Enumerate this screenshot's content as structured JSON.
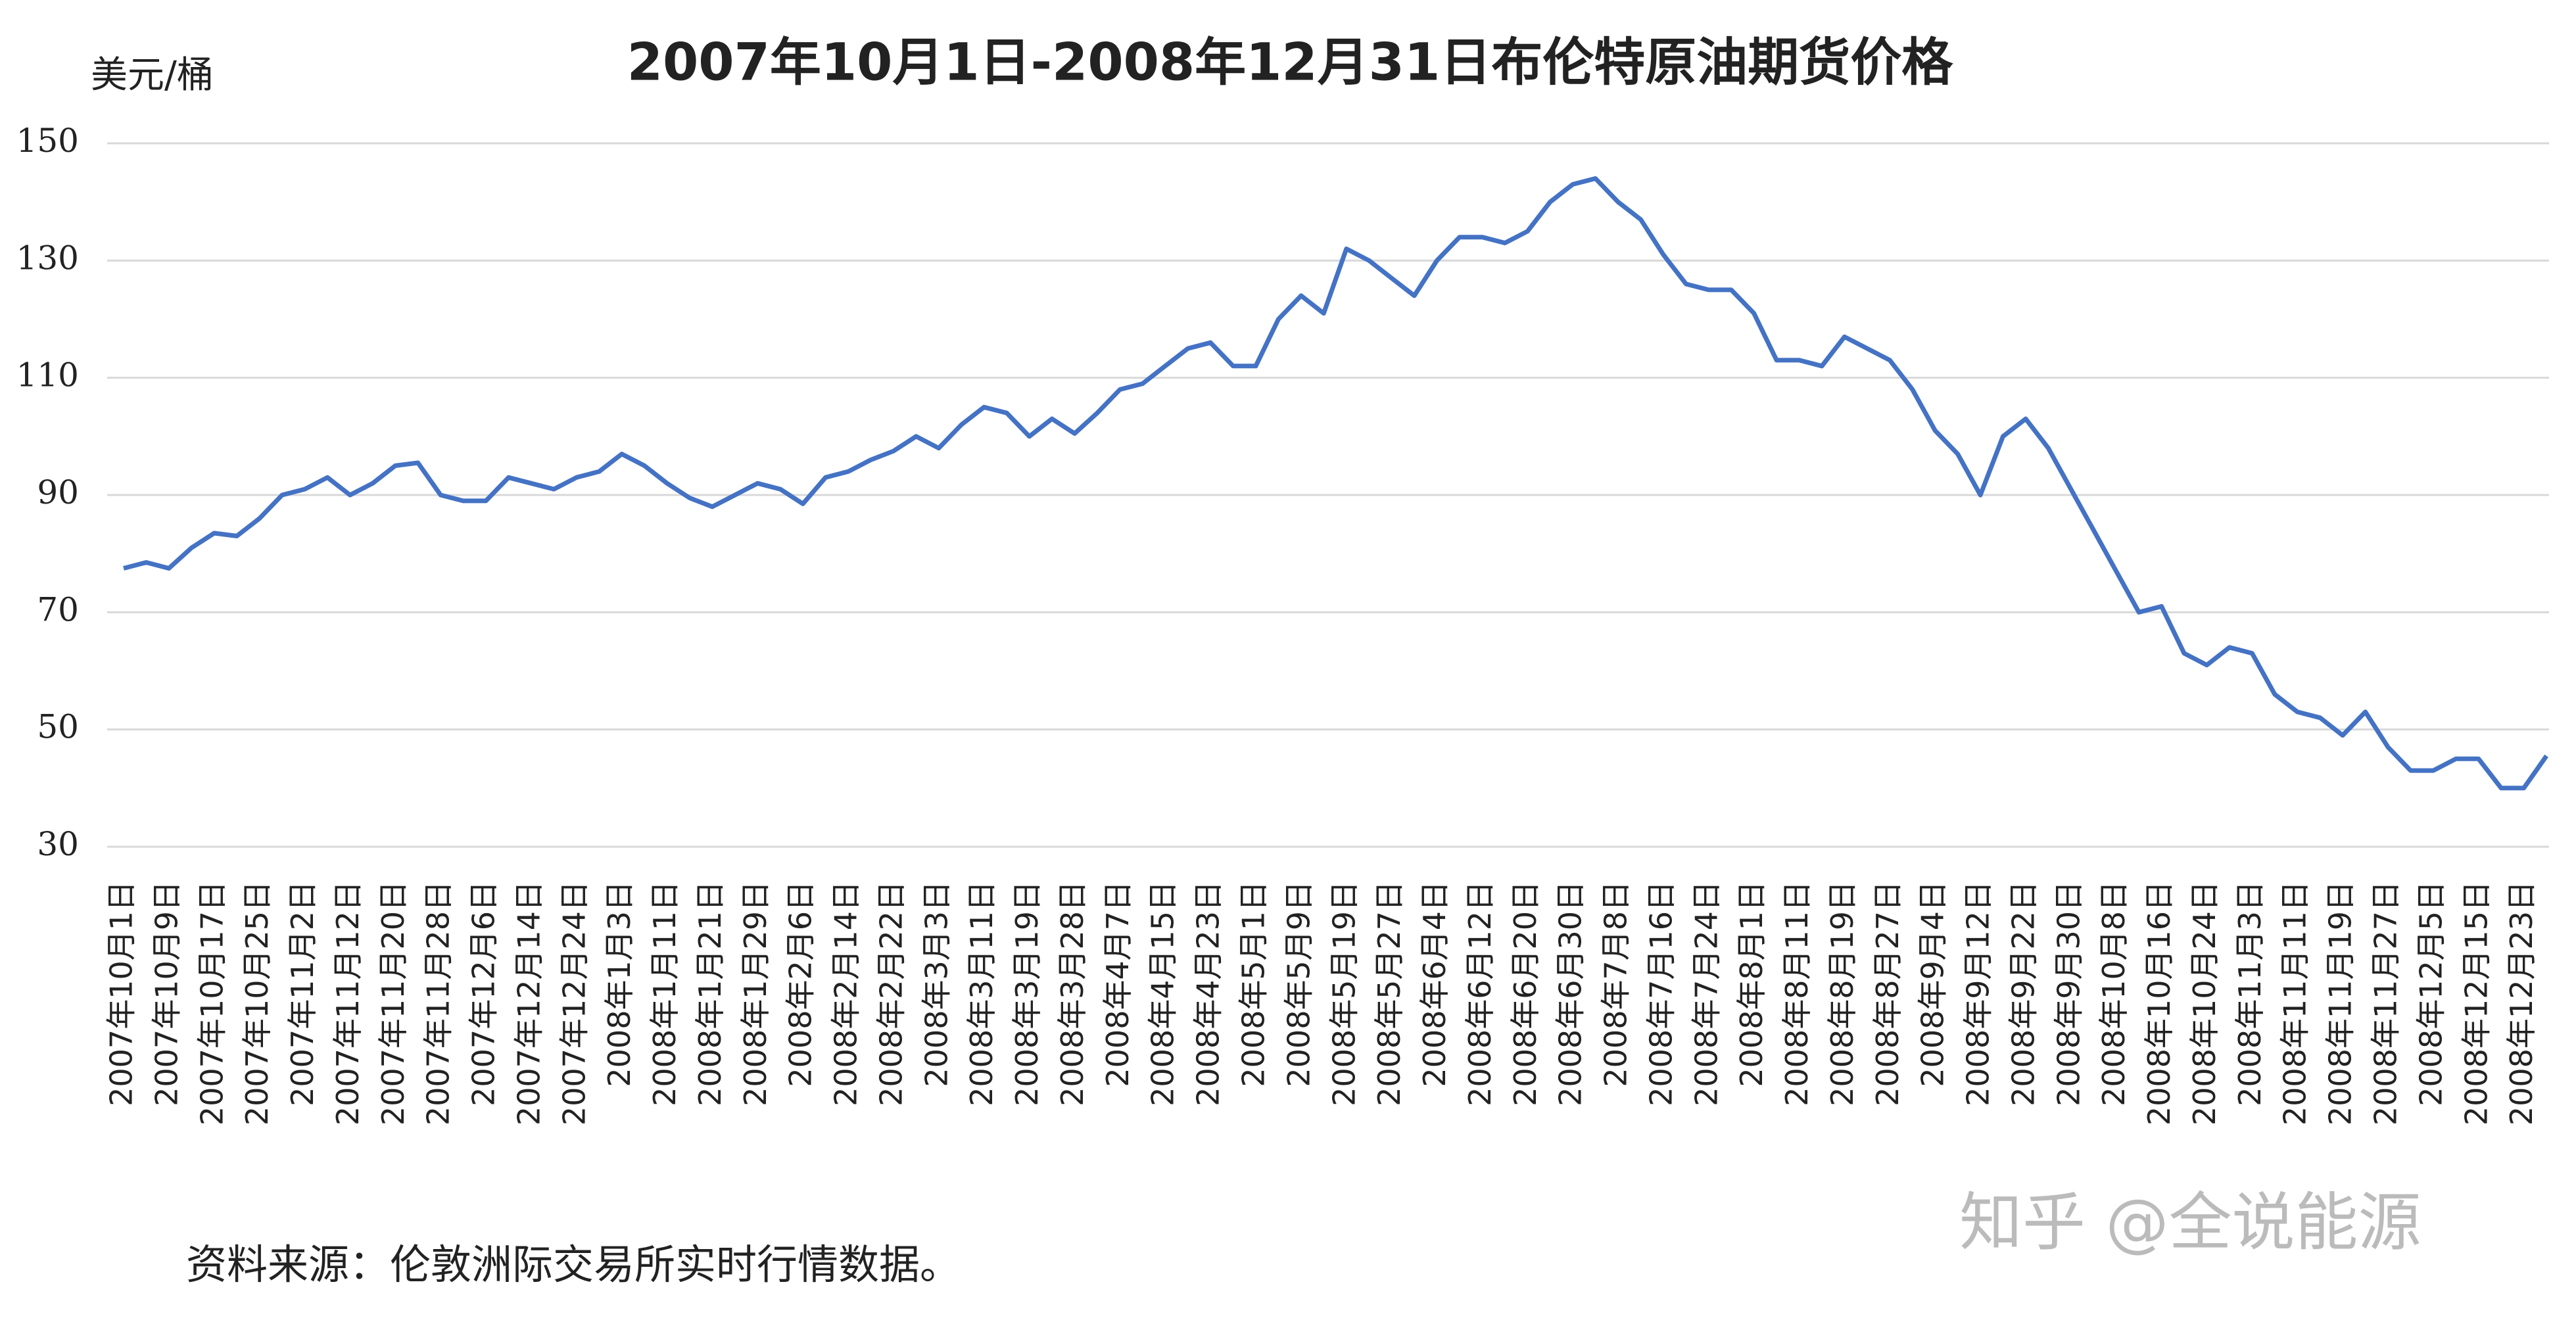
{
  "chart_data": {
    "type": "line",
    "title": "2007年10月1日-2008年12月31日布伦特原油期货价格",
    "y_label": "美元/桶",
    "source": "资料来源：伦敦洲际交易所实时行情数据。",
    "watermark": "知乎 @全说能源",
    "categories": [
      "2007年10月1日",
      null,
      "2007年10月9日",
      null,
      "2007年10月17日",
      null,
      "2007年10月25日",
      null,
      "2007年11月2日",
      null,
      "2007年11月12日",
      null,
      "2007年11月20日",
      null,
      "2007年11月28日",
      null,
      "2007年12月6日",
      null,
      "2007年12月14日",
      null,
      "2007年12月24日",
      null,
      "2008年1月3日",
      null,
      "2008年1月11日",
      null,
      "2008年1月21日",
      null,
      "2008年1月29日",
      null,
      "2008年2月6日",
      null,
      "2008年2月14日",
      null,
      "2008年2月22日",
      null,
      "2008年3月3日",
      null,
      "2008年3月11日",
      null,
      "2008年3月19日",
      null,
      "2008年3月28日",
      null,
      "2008年4月7日",
      null,
      "2008年4月15日",
      null,
      "2008年4月23日",
      null,
      "2008年5月1日",
      null,
      "2008年5月9日",
      null,
      "2008年5月19日",
      null,
      "2008年5月27日",
      null,
      "2008年6月4日",
      null,
      "2008年6月12日",
      null,
      "2008年6月20日",
      null,
      "2008年6月30日",
      null,
      "2008年7月8日",
      null,
      "2008年7月16日",
      null,
      "2008年7月24日",
      null,
      "2008年8月1日",
      null,
      "2008年8月11日",
      null,
      "2008年8月19日",
      null,
      "2008年8月27日",
      null,
      "2008年9月4日",
      null,
      "2008年9月12日",
      null,
      "2008年9月22日",
      null,
      "2008年9月30日",
      null,
      "2008年10月8日",
      null,
      "2008年10月16日",
      null,
      "2008年10月24日",
      null,
      "2008年11月3日",
      null,
      "2008年11月11日",
      null,
      "2008年11月19日",
      null,
      "2008年11月27日",
      null,
      "2008年12月5日",
      null,
      "2008年12月15日",
      null,
      "2008年12月23日",
      null
    ],
    "values": [
      77.5,
      78.5,
      77.5,
      81,
      83.5,
      83,
      86,
      90,
      91,
      93,
      90,
      92,
      95,
      95.5,
      90,
      89,
      89,
      93,
      92,
      91,
      93,
      94,
      97,
      95,
      92,
      89.5,
      88,
      90,
      92,
      91,
      88.5,
      93,
      94,
      96,
      97.5,
      100,
      98,
      102,
      105,
      104,
      100,
      103,
      100.5,
      104,
      108,
      109,
      112,
      115,
      116,
      112,
      112,
      120,
      124,
      121,
      132,
      130,
      127,
      124,
      130,
      134,
      134,
      133,
      135,
      140,
      143,
      144,
      140,
      137,
      131,
      126,
      125,
      125,
      121,
      113,
      113,
      112,
      117,
      115,
      113,
      108,
      101,
      97,
      90,
      100,
      103,
      98,
      91,
      84,
      77,
      70,
      71,
      63,
      61,
      64,
      63,
      56,
      53,
      52,
      49,
      53,
      47,
      43,
      43,
      45,
      45,
      40,
      40,
      45.5
    ],
    "color": "#4472c4",
    "ylim": [
      30,
      150
    ],
    "yticks": [
      30,
      50,
      70,
      90,
      110,
      130,
      150
    ],
    "grid": true
  }
}
